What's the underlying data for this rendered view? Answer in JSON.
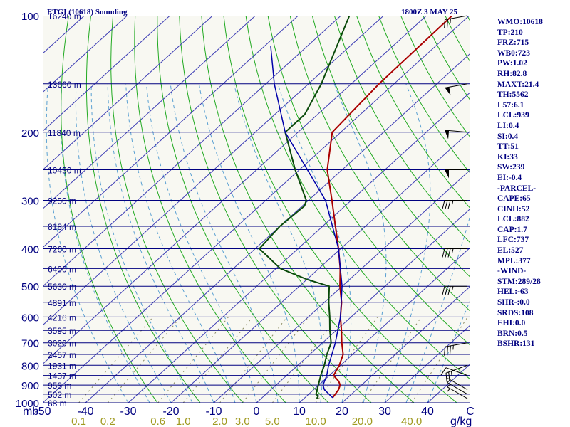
{
  "title_left": "ETGI (10618) Sounding",
  "title_right": "1800Z  3 MAY 25",
  "stats": [
    "WMO:10618",
    "TP:210",
    "FRZ:715",
    "WB0:723",
    "PW:1.02",
    "RH:82.8",
    "MAXT:21.4",
    "TH:5562",
    "L57:6.1",
    "LCL:939",
    "LI:0.4",
    "SI:0.4",
    "TT:51",
    "KI:33",
    "SW:239",
    "EI:-0.4",
    "-PARCEL-",
    "CAPE:65",
    "CINH:52",
    "LCL:882",
    "CAP:1.7",
    "LFC:737",
    "EL:527",
    "MPL:377",
    "-WIND-",
    "STM:289/28",
    "HEL:-63",
    "SHR-:0.0",
    "SRDS:108",
    "EHI:0.0",
    "BRN:0.5",
    "BSHR:131"
  ],
  "colors": {
    "isobar": "#000080",
    "isotherm": "#3c3cb4",
    "dry_adiabat": "#22aa22",
    "moist_adiabat": "#5aa0d2",
    "mixing_ratio": "#8a8a60",
    "temperature": "#aa0000",
    "dewpoint": "#0a4a0a",
    "parcel": "#0000aa",
    "wind_barb": "#000000"
  },
  "chart_data": {
    "type": "skew-t log-p",
    "y_axis": {
      "unit": "mb",
      "scale": "log",
      "ylim": [
        1000,
        100
      ],
      "ticks": [
        100,
        200,
        300,
        400,
        500,
        600,
        700,
        800,
        900,
        1000
      ],
      "tick_labels": [
        "100",
        "200",
        "300",
        "400",
        "500",
        "600",
        "700",
        "800",
        "900",
        "1000"
      ]
    },
    "x_axis": {
      "unit": "C",
      "ticks": [
        -50,
        -40,
        -30,
        -20,
        -10,
        0,
        10,
        20,
        30,
        40
      ],
      "tick_labels": [
        "-50",
        "-40",
        "-30",
        "-20",
        "-10",
        "0",
        "10",
        "20",
        "30",
        "40"
      ],
      "xlim_at_1000mb": [
        -50,
        50
      ]
    },
    "mixing_ratio_axis": {
      "unit": "g/kg",
      "values": [
        0.1,
        0.2,
        0.6,
        1.0,
        2.0,
        3.0,
        5.0,
        10.0,
        20.0,
        40.0
      ],
      "tick_labels": [
        "0.1",
        "0.2",
        "0.6",
        "1.0",
        "2.0",
        "3.0",
        "5.0",
        "10.0",
        "20.0",
        "40.0"
      ]
    },
    "height_labels": [
      {
        "p": 100,
        "label": "16240 m"
      },
      {
        "p": 150,
        "label": "13660 m"
      },
      {
        "p": 200,
        "label": "11840 m"
      },
      {
        "p": 250,
        "label": "10430 m"
      },
      {
        "p": 300,
        "label": "9250 m"
      },
      {
        "p": 350,
        "label": "8184 m"
      },
      {
        "p": 400,
        "label": "7260 m"
      },
      {
        "p": 450,
        "label": "6400 m"
      },
      {
        "p": 500,
        "label": "5630 m"
      },
      {
        "p": 550,
        "label": "4891 m"
      },
      {
        "p": 600,
        "label": "4216 m"
      },
      {
        "p": 650,
        "label": "3595 m"
      },
      {
        "p": 700,
        "label": "3020 m"
      },
      {
        "p": 750,
        "label": "2457 m"
      },
      {
        "p": 800,
        "label": "1931 m"
      },
      {
        "p": 850,
        "label": "1437 m"
      },
      {
        "p": 900,
        "label": "958 m"
      },
      {
        "p": 950,
        "label": "502 m"
      },
      {
        "p": 1000,
        "label": "68 m"
      }
    ],
    "series": [
      {
        "key": "temperature",
        "points": [
          {
            "p": 970,
            "t": 16.5
          },
          {
            "p": 925,
            "t": 15.8
          },
          {
            "p": 900,
            "t": 15.0
          },
          {
            "p": 880,
            "t": 13.7
          },
          {
            "p": 850,
            "t": 11.0
          },
          {
            "p": 800,
            "t": 9.7
          },
          {
            "p": 750,
            "t": 7.8
          },
          {
            "p": 700,
            "t": 4.5
          },
          {
            "p": 650,
            "t": 1.2
          },
          {
            "p": 600,
            "t": -2.5
          },
          {
            "p": 550,
            "t": -6.0
          },
          {
            "p": 500,
            "t": -10.5
          },
          {
            "p": 450,
            "t": -15.0
          },
          {
            "p": 400,
            "t": -20.5
          },
          {
            "p": 350,
            "t": -27.0
          },
          {
            "p": 300,
            "t": -34.5
          },
          {
            "p": 250,
            "t": -43.5
          },
          {
            "p": 200,
            "t": -52.0
          },
          {
            "p": 150,
            "t": -53.5
          },
          {
            "p": 100,
            "t": -54.0
          }
        ]
      },
      {
        "key": "dewpoint",
        "points": [
          {
            "p": 975,
            "t": 13.0
          },
          {
            "p": 960,
            "t": 12.7
          },
          {
            "p": 950,
            "t": 11.7
          },
          {
            "p": 900,
            "t": 9.9
          },
          {
            "p": 850,
            "t": 8.0
          },
          {
            "p": 800,
            "t": 6.2
          },
          {
            "p": 750,
            "t": 4.0
          },
          {
            "p": 700,
            "t": 2.0
          },
          {
            "p": 650,
            "t": -1.5
          },
          {
            "p": 600,
            "t": -5.0
          },
          {
            "p": 550,
            "t": -9.0
          },
          {
            "p": 500,
            "t": -13.0
          },
          {
            "p": 480,
            "t": -20.0
          },
          {
            "p": 450,
            "t": -29.0
          },
          {
            "p": 400,
            "t": -39.0
          },
          {
            "p": 350,
            "t": -40.0
          },
          {
            "p": 310,
            "t": -39.5
          },
          {
            "p": 300,
            "t": -40.5
          },
          {
            "p": 250,
            "t": -51.0
          },
          {
            "p": 200,
            "t": -63.0
          },
          {
            "p": 180,
            "t": -63.0
          },
          {
            "p": 150,
            "t": -67.0
          },
          {
            "p": 100,
            "t": -78.0
          }
        ]
      },
      {
        "key": "parcel",
        "points": [
          {
            "p": 970,
            "t": 16.5
          },
          {
            "p": 925,
            "t": 12.5
          },
          {
            "p": 900,
            "t": 11.0
          },
          {
            "p": 850,
            "t": 9.4
          },
          {
            "p": 800,
            "t": 7.2
          },
          {
            "p": 700,
            "t": 3.0
          },
          {
            "p": 600,
            "t": -2.5
          },
          {
            "p": 500,
            "t": -10.0
          },
          {
            "p": 400,
            "t": -20.5
          },
          {
            "p": 300,
            "t": -36.0
          },
          {
            "p": 200,
            "t": -63.0
          },
          {
            "p": 150,
            "t": -78.0
          },
          {
            "p": 120,
            "t": -88.5
          }
        ]
      }
    ],
    "wind_barbs": [
      {
        "p": 100,
        "dir": 260,
        "speed": 25
      },
      {
        "p": 150,
        "dir": 260,
        "speed": 50
      },
      {
        "p": 200,
        "dir": 275,
        "speed": 50
      },
      {
        "p": 250,
        "dir": 270,
        "speed": 50
      },
      {
        "p": 300,
        "dir": 270,
        "speed": 35
      },
      {
        "p": 400,
        "dir": 270,
        "speed": 35
      },
      {
        "p": 500,
        "dir": 270,
        "speed": 35
      },
      {
        "p": 700,
        "dir": 260,
        "speed": 35
      },
      {
        "p": 800,
        "dir": 250,
        "speed": 25
      },
      {
        "p": 850,
        "dir": 290,
        "speed": 10
      },
      {
        "p": 925,
        "dir": 300,
        "speed": 5
      },
      {
        "p": 950,
        "dir": 300,
        "speed": 5
      },
      {
        "p": 975,
        "dir": 300,
        "speed": 5
      }
    ]
  }
}
